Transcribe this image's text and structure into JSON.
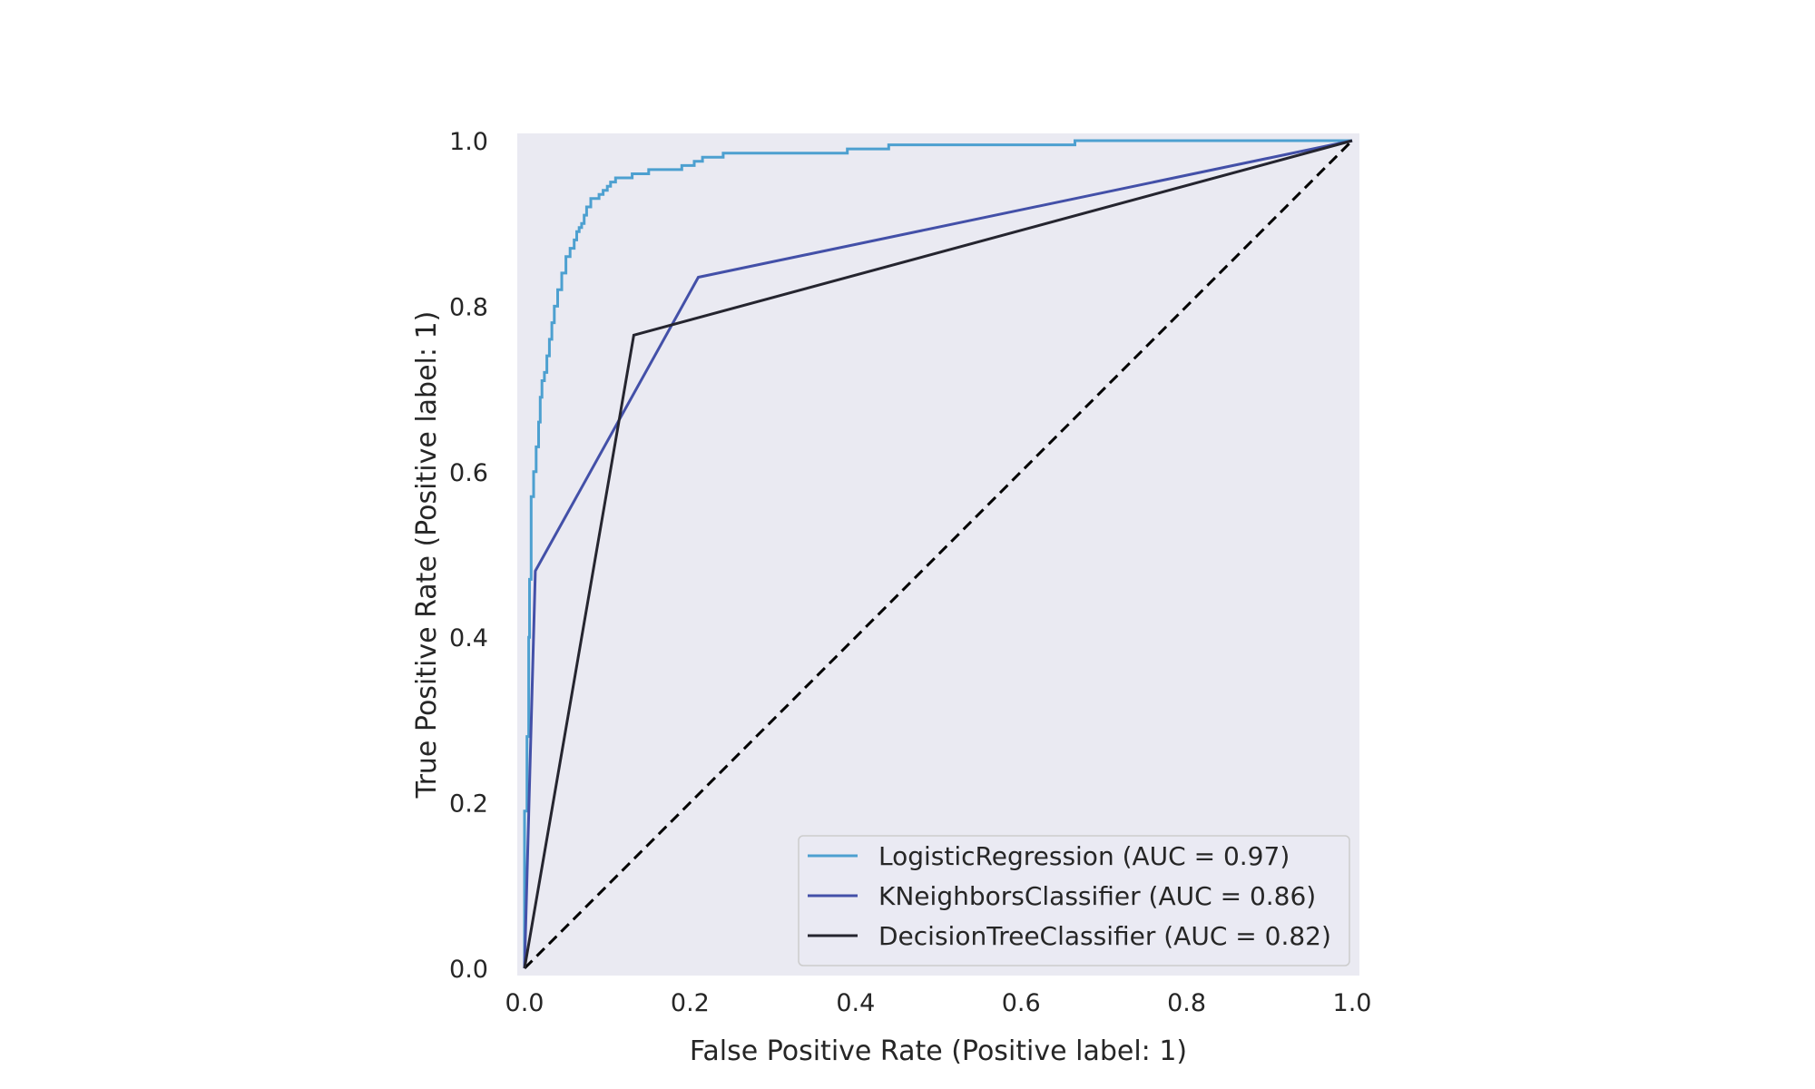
{
  "chart_data": {
    "type": "line",
    "title": "",
    "xlabel": "False Positive Rate (Positive label: 1)",
    "ylabel": "True Positive Rate (Positive label: 1)",
    "xlim": [
      0.0,
      1.0
    ],
    "ylim": [
      0.0,
      1.0
    ],
    "x_ticks": [
      "0.0",
      "0.2",
      "0.4",
      "0.6",
      "0.8",
      "1.0"
    ],
    "y_ticks": [
      "0.0",
      "0.2",
      "0.4",
      "0.6",
      "0.8",
      "1.0"
    ],
    "grid": false,
    "legend_position": "lower-right",
    "background_color": "#eaeaf2",
    "series": [
      {
        "name": "LogisticRegression (AUC = 0.97)",
        "color": "#4da0d0",
        "x": [
          0.0,
          0.0,
          0.003,
          0.003,
          0.005,
          0.005,
          0.006,
          0.006,
          0.008,
          0.008,
          0.011,
          0.011,
          0.014,
          0.014,
          0.017,
          0.017,
          0.019,
          0.019,
          0.021,
          0.021,
          0.024,
          0.024,
          0.027,
          0.027,
          0.03,
          0.03,
          0.033,
          0.033,
          0.036,
          0.036,
          0.04,
          0.04,
          0.045,
          0.045,
          0.05,
          0.05,
          0.055,
          0.055,
          0.06,
          0.06,
          0.063,
          0.063,
          0.066,
          0.066,
          0.069,
          0.069,
          0.072,
          0.072,
          0.075,
          0.075,
          0.08,
          0.08,
          0.09,
          0.09,
          0.095,
          0.095,
          0.1,
          0.1,
          0.104,
          0.104,
          0.11,
          0.11,
          0.13,
          0.13,
          0.15,
          0.15,
          0.19,
          0.19,
          0.205,
          0.205,
          0.215,
          0.215,
          0.24,
          0.24,
          0.39,
          0.39,
          0.44,
          0.44,
          0.665,
          0.665,
          1.0
        ],
        "y": [
          0.0,
          0.19,
          0.19,
          0.28,
          0.28,
          0.4,
          0.4,
          0.47,
          0.47,
          0.57,
          0.57,
          0.6,
          0.6,
          0.63,
          0.63,
          0.66,
          0.66,
          0.69,
          0.69,
          0.71,
          0.71,
          0.72,
          0.72,
          0.74,
          0.74,
          0.76,
          0.76,
          0.78,
          0.78,
          0.8,
          0.8,
          0.82,
          0.82,
          0.84,
          0.84,
          0.86,
          0.86,
          0.87,
          0.87,
          0.88,
          0.88,
          0.89,
          0.89,
          0.895,
          0.895,
          0.9,
          0.9,
          0.91,
          0.91,
          0.92,
          0.92,
          0.93,
          0.93,
          0.935,
          0.935,
          0.94,
          0.94,
          0.945,
          0.945,
          0.95,
          0.95,
          0.955,
          0.955,
          0.96,
          0.96,
          0.965,
          0.965,
          0.97,
          0.97,
          0.975,
          0.975,
          0.98,
          0.98,
          0.985,
          0.985,
          0.99,
          0.99,
          0.995,
          0.995,
          1.0,
          1.0
        ]
      },
      {
        "name": "KNeighborsClassifier (AUC = 0.86)",
        "color": "#4350a8",
        "x": [
          0.0,
          0.013,
          0.21,
          1.0
        ],
        "y": [
          0.0,
          0.48,
          0.835,
          1.0
        ]
      },
      {
        "name": "DecisionTreeClassifier (AUC = 0.82)",
        "color": "#25252f",
        "x": [
          0.0,
          0.132,
          1.0
        ],
        "y": [
          0.0,
          0.765,
          1.0
        ]
      }
    ],
    "reference_line": {
      "x": [
        0.0,
        1.0
      ],
      "y": [
        0.0,
        1.0
      ],
      "style": "dashed",
      "color": "#000000"
    }
  }
}
